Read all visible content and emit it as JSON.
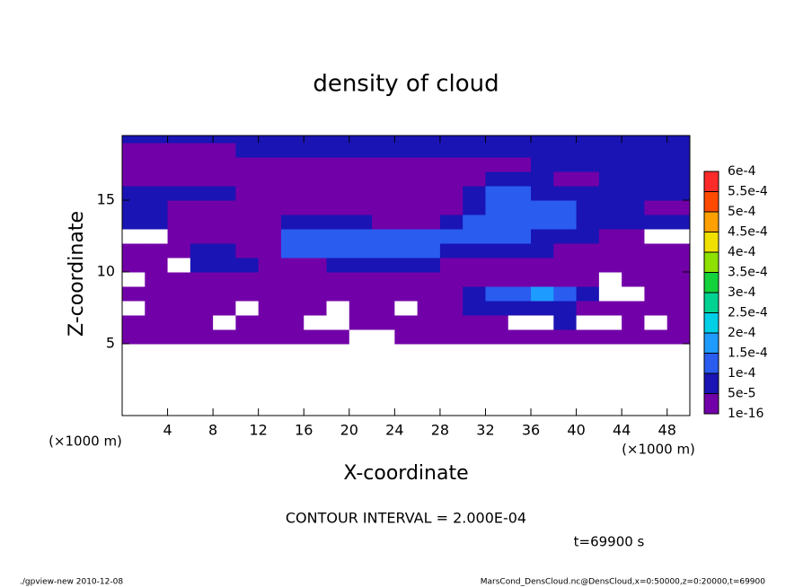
{
  "chart_data": {
    "type": "contour",
    "title": "density of cloud",
    "xlabel": "X-coordinate",
    "ylabel": "Z-coordinate",
    "xunit": "(×1000 m)",
    "yunit": "(×1000 m)",
    "annotations": [
      "CONTOUR INTERVAL = 2.000E-04",
      "t=69900 s",
      "./gpview-new   2010-12-08",
      "MarsCond_DensCloud.nc@DensCloud,x=0:50000,z=0:20000,t=69900"
    ],
    "xlim": [
      0,
      50
    ],
    "ylim": [
      0,
      19.5
    ],
    "xticks": [
      4,
      8,
      12,
      16,
      20,
      24,
      28,
      32,
      36,
      40,
      44,
      48
    ],
    "yticks": [
      5,
      10,
      15
    ],
    "xbins": [
      0,
      2,
      4,
      6,
      8,
      10,
      12,
      14,
      16,
      18,
      20,
      22,
      24,
      26,
      28,
      30,
      32,
      34,
      36,
      38,
      40,
      42,
      44,
      46,
      48,
      50
    ],
    "ybins": [
      5,
      6,
      7,
      8,
      9,
      10,
      11,
      12,
      13,
      14,
      15,
      16,
      17,
      18,
      19,
      19.5
    ],
    "values": [
      [
        2e-05,
        2e-05,
        2e-05,
        2e-05,
        2e-05,
        2e-05,
        2e-05,
        2e-05,
        2e-05,
        2e-05,
        0,
        0,
        2e-05,
        2e-05,
        2e-05,
        2e-05,
        2e-05,
        2e-05,
        2e-05,
        2e-05,
        2e-05,
        2e-05,
        2e-05,
        2e-05,
        2e-05
      ],
      [
        2e-05,
        2e-05,
        2e-05,
        2e-05,
        0,
        2e-05,
        2e-05,
        2e-05,
        0,
        0,
        2e-05,
        2e-05,
        2e-05,
        2e-05,
        2e-05,
        2e-05,
        2e-05,
        0,
        0,
        7e-05,
        0,
        0,
        2e-05,
        0,
        2e-05
      ],
      [
        0,
        2e-05,
        2e-05,
        2e-05,
        2e-05,
        0,
        2e-05,
        2e-05,
        2e-05,
        0,
        2e-05,
        2e-05,
        0,
        2e-05,
        2e-05,
        7e-05,
        7e-05,
        7e-05,
        7e-05,
        7e-05,
        2e-05,
        2e-05,
        2e-05,
        2e-05,
        2e-05
      ],
      [
        2e-05,
        2e-05,
        2e-05,
        2e-05,
        2e-05,
        2e-05,
        2e-05,
        2e-05,
        2e-05,
        2e-05,
        2e-05,
        2e-05,
        2e-05,
        2e-05,
        2e-05,
        7e-05,
        0.00012,
        0.00012,
        0.00017,
        0.00012,
        7e-05,
        0,
        0,
        2e-05,
        2e-05
      ],
      [
        0,
        2e-05,
        2e-05,
        2e-05,
        2e-05,
        2e-05,
        2e-05,
        2e-05,
        2e-05,
        2e-05,
        2e-05,
        2e-05,
        2e-05,
        2e-05,
        2e-05,
        2e-05,
        2e-05,
        2e-05,
        2e-05,
        2e-05,
        2e-05,
        0,
        2e-05,
        2e-05,
        2e-05
      ],
      [
        2e-05,
        2e-05,
        0,
        7e-05,
        7e-05,
        7e-05,
        2e-05,
        2e-05,
        2e-05,
        7e-05,
        7e-05,
        7e-05,
        7e-05,
        7e-05,
        2e-05,
        2e-05,
        2e-05,
        2e-05,
        2e-05,
        2e-05,
        2e-05,
        2e-05,
        2e-05,
        2e-05,
        2e-05
      ],
      [
        2e-05,
        2e-05,
        2e-05,
        7e-05,
        7e-05,
        2e-05,
        2e-05,
        0.00012,
        0.00012,
        0.00012,
        0.00012,
        0.00012,
        0.00012,
        0.00012,
        7e-05,
        7e-05,
        7e-05,
        7e-05,
        7e-05,
        2e-05,
        2e-05,
        2e-05,
        2e-05,
        2e-05,
        2e-05
      ],
      [
        0,
        0,
        2e-05,
        2e-05,
        2e-05,
        2e-05,
        2e-05,
        0.00012,
        0.00012,
        0.00012,
        0.00012,
        0.00012,
        0.00012,
        0.00012,
        0.00012,
        0.00012,
        0.00012,
        0.00012,
        7e-05,
        7e-05,
        7e-05,
        2e-05,
        2e-05,
        0,
        0
      ],
      [
        7e-05,
        7e-05,
        2e-05,
        2e-05,
        2e-05,
        2e-05,
        2e-05,
        7e-05,
        7e-05,
        7e-05,
        7e-05,
        2e-05,
        2e-05,
        2e-05,
        7e-05,
        0.00012,
        0.00012,
        0.00012,
        0.00012,
        0.00012,
        7e-05,
        7e-05,
        7e-05,
        7e-05,
        7e-05
      ],
      [
        7e-05,
        7e-05,
        2e-05,
        2e-05,
        2e-05,
        2e-05,
        2e-05,
        2e-05,
        2e-05,
        2e-05,
        2e-05,
        2e-05,
        2e-05,
        2e-05,
        2e-05,
        7e-05,
        0.00012,
        0.00012,
        0.00012,
        0.00012,
        7e-05,
        7e-05,
        7e-05,
        2e-05,
        2e-05
      ],
      [
        7e-05,
        7e-05,
        7e-05,
        7e-05,
        7e-05,
        2e-05,
        2e-05,
        2e-05,
        2e-05,
        2e-05,
        2e-05,
        2e-05,
        2e-05,
        2e-05,
        2e-05,
        7e-05,
        0.00012,
        0.00012,
        7e-05,
        7e-05,
        7e-05,
        7e-05,
        7e-05,
        7e-05,
        7e-05
      ],
      [
        2e-05,
        2e-05,
        2e-05,
        2e-05,
        2e-05,
        2e-05,
        2e-05,
        2e-05,
        2e-05,
        2e-05,
        2e-05,
        2e-05,
        2e-05,
        2e-05,
        2e-05,
        2e-05,
        7e-05,
        7e-05,
        7e-05,
        2e-05,
        2e-05,
        7e-05,
        7e-05,
        7e-05,
        7e-05
      ],
      [
        2e-05,
        2e-05,
        2e-05,
        2e-05,
        2e-05,
        2e-05,
        2e-05,
        2e-05,
        2e-05,
        2e-05,
        2e-05,
        2e-05,
        2e-05,
        2e-05,
        2e-05,
        2e-05,
        2e-05,
        2e-05,
        7e-05,
        7e-05,
        7e-05,
        7e-05,
        7e-05,
        7e-05,
        7e-05
      ],
      [
        2e-05,
        2e-05,
        2e-05,
        2e-05,
        2e-05,
        7e-05,
        7e-05,
        7e-05,
        7e-05,
        7e-05,
        7e-05,
        7e-05,
        7e-05,
        7e-05,
        7e-05,
        7e-05,
        7e-05,
        7e-05,
        7e-05,
        7e-05,
        7e-05,
        7e-05,
        7e-05,
        7e-05,
        7e-05
      ],
      [
        7e-05,
        7e-05,
        7e-05,
        7e-05,
        7e-05,
        7e-05,
        7e-05,
        7e-05,
        7e-05,
        7e-05,
        7e-05,
        7e-05,
        7e-05,
        7e-05,
        7e-05,
        7e-05,
        7e-05,
        7e-05,
        7e-05,
        7e-05,
        7e-05,
        7e-05,
        7e-05,
        7e-05,
        7e-05
      ]
    ],
    "levels": [
      {
        "value": 1e-16,
        "label": "1e-16"
      },
      {
        "value": 5e-05,
        "label": "5e-5"
      },
      {
        "value": 0.0001,
        "label": "1e-4"
      },
      {
        "value": 0.00015,
        "label": "1.5e-4"
      },
      {
        "value": 0.0002,
        "label": "2e-4"
      },
      {
        "value": 0.00025,
        "label": "2.5e-4"
      },
      {
        "value": 0.0003,
        "label": "3e-4"
      },
      {
        "value": 0.00035,
        "label": "3.5e-4"
      },
      {
        "value": 0.0004,
        "label": "4e-4"
      },
      {
        "value": 0.00045,
        "label": "4.5e-4"
      },
      {
        "value": 0.0005,
        "label": "5e-4"
      },
      {
        "value": 0.00055,
        "label": "5.5e-4"
      },
      {
        "value": 0.0006,
        "label": "6e-4"
      }
    ],
    "colors": [
      "#7200a8",
      "#1a14b4",
      "#2a5cf0",
      "#1e9bff",
      "#00cfe6",
      "#00d291",
      "#14d23c",
      "#8ee000",
      "#f0e000",
      "#ffa000",
      "#ff4a00",
      "#ff2a2a",
      "#ff8c8c"
    ]
  }
}
